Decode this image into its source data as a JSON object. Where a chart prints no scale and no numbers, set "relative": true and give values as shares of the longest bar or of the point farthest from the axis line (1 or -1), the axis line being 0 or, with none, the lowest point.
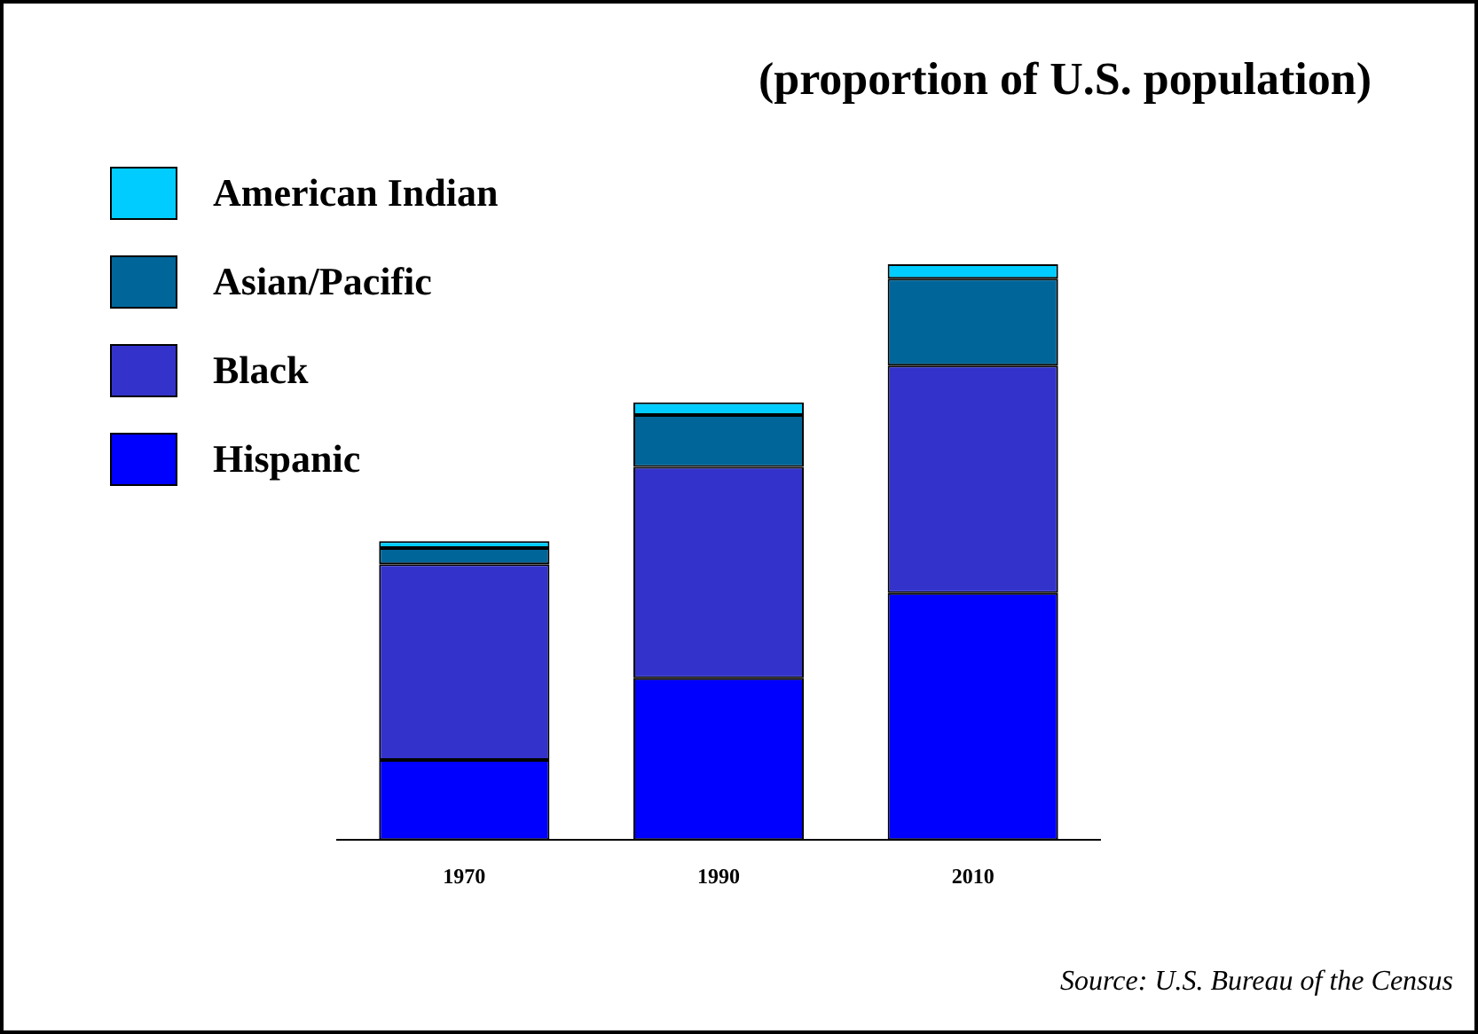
{
  "chart_data": {
    "type": "bar",
    "title": "(proportion of U.S. population)",
    "categories": [
      "1970",
      "1990",
      "2010"
    ],
    "stacked": true,
    "relative": true,
    "grid": false,
    "legend": "top left",
    "annotations": [
      "Source: U.S. Bureau of the Census"
    ],
    "series": [
      {
        "name": "Hispanic",
        "color": "#0000ff",
        "values": [
          0.139,
          0.281,
          0.429
        ]
      },
      {
        "name": "Black",
        "color": "#3333cc",
        "values": [
          0.34,
          0.367,
          0.395
        ]
      },
      {
        "name": "Asian/Pacific",
        "color": "#006699",
        "values": [
          0.028,
          0.09,
          0.151
        ]
      },
      {
        "name": "American Indian",
        "color": "#00ccff",
        "values": [
          0.012,
          0.022,
          0.025
        ]
      }
    ]
  }
}
